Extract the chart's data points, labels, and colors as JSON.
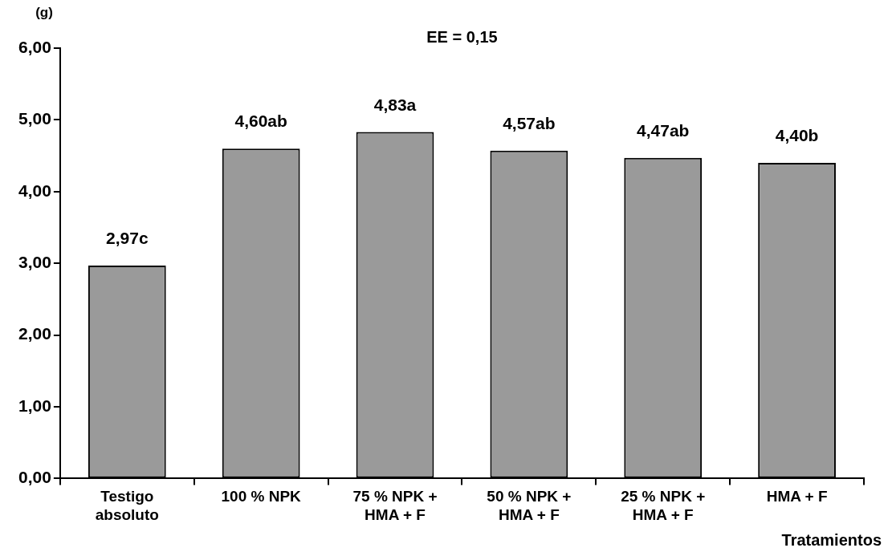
{
  "chart_data": {
    "type": "bar",
    "title": "EE = 0,15",
    "ylabel": "(g)",
    "xlabel": "Tratamientos",
    "categories": [
      "Testigo absoluto",
      "100 % NPK",
      "75 % NPK + HMA + F",
      "50 % NPK + HMA + F",
      "25 % NPK + HMA + F",
      "HMA + F"
    ],
    "values": [
      2.97,
      4.6,
      4.83,
      4.57,
      4.47,
      4.4
    ],
    "value_labels": [
      "2,97c",
      "4,60ab",
      "4,83a",
      "4,57ab",
      "4,47ab",
      "4,40b"
    ],
    "color": "#9a9a9a",
    "ylim": [
      0,
      6
    ],
    "yticks": [
      {
        "value": 0,
        "label": "0,00"
      },
      {
        "value": 1,
        "label": "1,00"
      },
      {
        "value": 2,
        "label": "2,00"
      },
      {
        "value": 3,
        "label": "3,00"
      },
      {
        "value": 4,
        "label": "4,00"
      },
      {
        "value": 5,
        "label": "5,00"
      },
      {
        "value": 6,
        "label": "6,00"
      }
    ],
    "grid": false,
    "legend": false
  }
}
